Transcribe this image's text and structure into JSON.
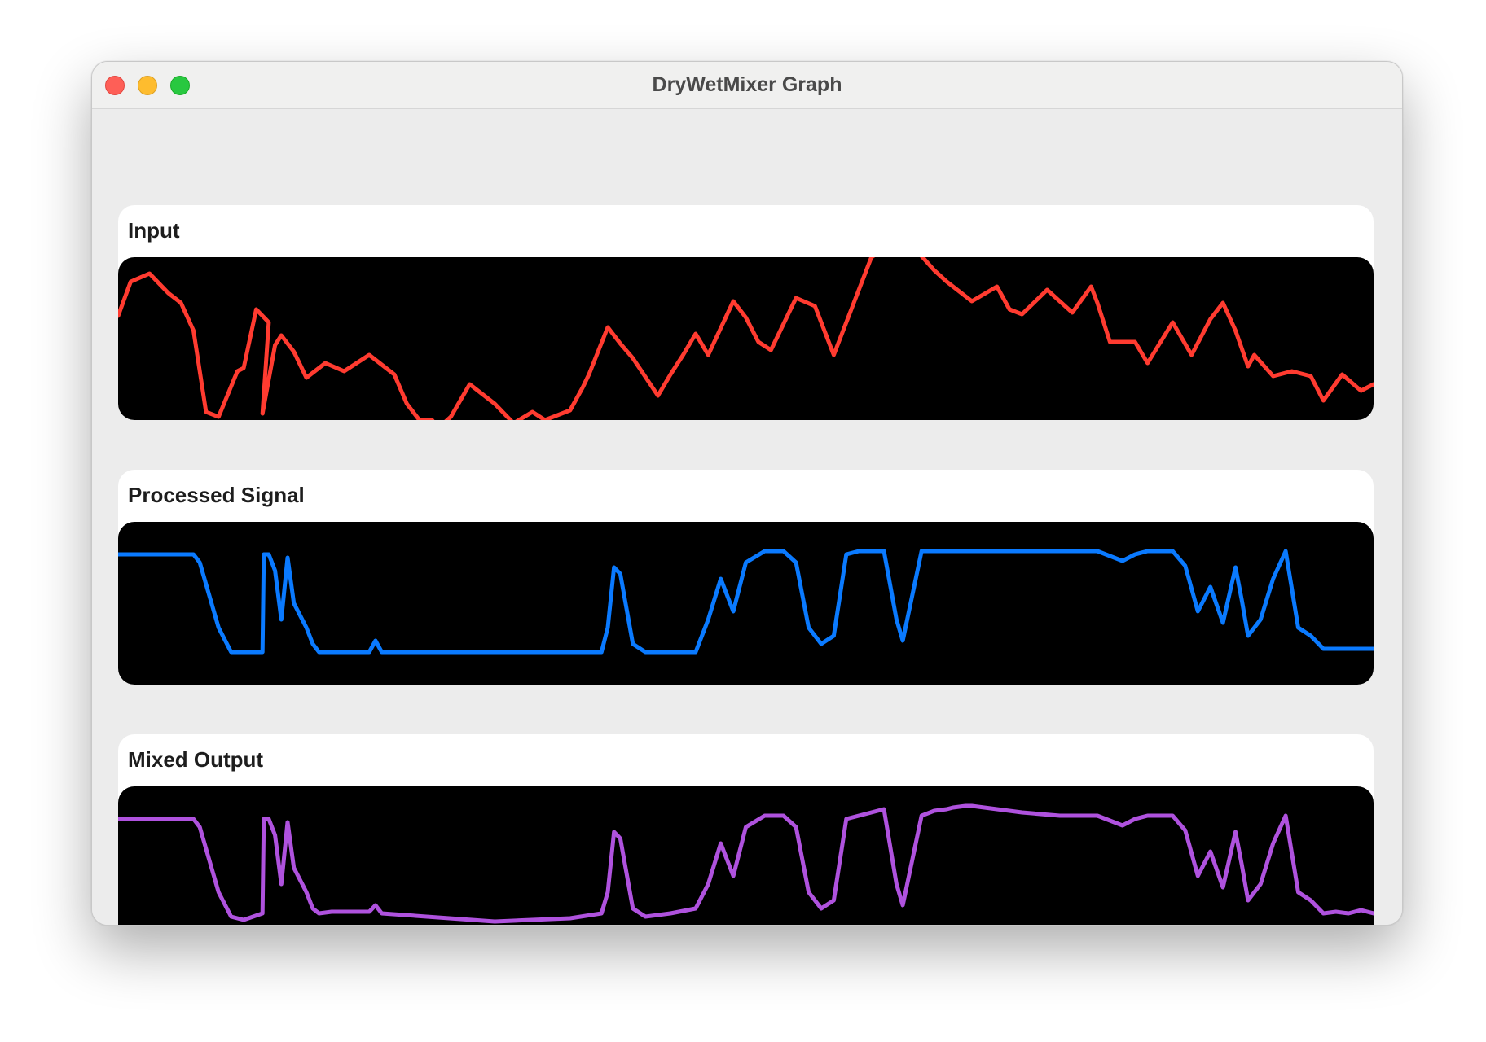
{
  "window": {
    "title": "DryWetMixer Graph",
    "controls": [
      "close",
      "minimize",
      "zoom"
    ]
  },
  "panels": [
    {
      "label": "Input",
      "color": "#ff3b30"
    },
    {
      "label": "Processed Signal",
      "color": "#0a7aff"
    },
    {
      "label": "Mixed Output",
      "color": "#af52de"
    }
  ],
  "chart_data": [
    {
      "type": "line",
      "title": "Input",
      "color": "#ff3b30",
      "xlim": [
        0,
        1
      ],
      "ylim": [
        0,
        1
      ],
      "x": [
        0,
        0.01,
        0.025,
        0.04,
        0.05,
        0.06,
        0.07,
        0.08,
        0.095,
        0.1,
        0.11,
        0.12,
        0.115,
        0.125,
        0.13,
        0.14,
        0.15,
        0.165,
        0.18,
        0.2,
        0.22,
        0.23,
        0.24,
        0.25,
        0.255,
        0.265,
        0.28,
        0.3,
        0.315,
        0.33,
        0.34,
        0.36,
        0.37,
        0.375,
        0.39,
        0.4,
        0.41,
        0.43,
        0.44,
        0.45,
        0.46,
        0.47,
        0.49,
        0.5,
        0.51,
        0.52,
        0.54,
        0.555,
        0.57,
        0.585,
        0.6,
        0.62,
        0.635,
        0.65,
        0.66,
        0.68,
        0.7,
        0.71,
        0.72,
        0.74,
        0.76,
        0.775,
        0.78,
        0.79,
        0.81,
        0.82,
        0.84,
        0.855,
        0.87,
        0.88,
        0.89,
        0.9,
        0.905,
        0.92,
        0.935,
        0.95,
        0.96,
        0.975,
        0.99,
        1
      ],
      "y": [
        0.64,
        0.85,
        0.9,
        0.78,
        0.72,
        0.55,
        0.05,
        0.02,
        0.3,
        0.32,
        0.68,
        0.6,
        0.04,
        0.46,
        0.52,
        0.42,
        0.26,
        0.35,
        0.3,
        0.4,
        0.28,
        0.1,
        0.0,
        0.0,
        -0.05,
        0.02,
        0.22,
        0.1,
        -0.02,
        0.05,
        0.0,
        0.06,
        0.2,
        0.28,
        0.57,
        0.47,
        0.38,
        0.15,
        0.28,
        0.4,
        0.53,
        0.4,
        0.73,
        0.63,
        0.48,
        0.43,
        0.75,
        0.7,
        0.4,
        0.7,
        1.0,
        1.1,
        1.05,
        0.92,
        0.85,
        0.73,
        0.82,
        0.68,
        0.65,
        0.8,
        0.66,
        0.82,
        0.72,
        0.48,
        0.48,
        0.35,
        0.6,
        0.4,
        0.62,
        0.72,
        0.55,
        0.33,
        0.4,
        0.27,
        0.3,
        0.27,
        0.12,
        0.28,
        0.18,
        0.22
      ]
    },
    {
      "type": "line",
      "title": "Processed Signal",
      "color": "#0a7aff",
      "xlim": [
        0,
        1
      ],
      "ylim": [
        0,
        1
      ],
      "x": [
        0,
        0.06,
        0.065,
        0.08,
        0.09,
        0.1,
        0.115,
        0.116,
        0.12,
        0.125,
        0.13,
        0.135,
        0.14,
        0.15,
        0.155,
        0.16,
        0.17,
        0.2,
        0.205,
        0.21,
        0.3,
        0.36,
        0.385,
        0.39,
        0.395,
        0.4,
        0.41,
        0.42,
        0.44,
        0.46,
        0.47,
        0.48,
        0.49,
        0.5,
        0.515,
        0.53,
        0.54,
        0.55,
        0.56,
        0.57,
        0.575,
        0.58,
        0.59,
        0.6,
        0.61,
        0.62,
        0.625,
        0.64,
        0.65,
        0.66,
        0.665,
        0.675,
        0.68,
        0.69,
        0.72,
        0.75,
        0.78,
        0.8,
        0.81,
        0.82,
        0.84,
        0.85,
        0.86,
        0.87,
        0.88,
        0.89,
        0.895,
        0.9,
        0.91,
        0.92,
        0.93,
        0.94,
        0.95,
        0.96,
        0.97,
        0.98,
        0.99,
        1
      ],
      "y": [
        0.8,
        0.8,
        0.75,
        0.35,
        0.2,
        0.2,
        0.2,
        0.8,
        0.8,
        0.7,
        0.4,
        0.78,
        0.5,
        0.35,
        0.25,
        0.2,
        0.2,
        0.2,
        0.27,
        0.2,
        0.2,
        0.2,
        0.2,
        0.35,
        0.72,
        0.68,
        0.25,
        0.2,
        0.2,
        0.2,
        0.4,
        0.65,
        0.45,
        0.75,
        0.82,
        0.82,
        0.75,
        0.35,
        0.25,
        0.3,
        0.55,
        0.8,
        0.82,
        0.82,
        0.82,
        0.4,
        0.27,
        0.82,
        0.82,
        0.82,
        0.82,
        0.82,
        0.82,
        0.82,
        0.82,
        0.82,
        0.82,
        0.76,
        0.8,
        0.82,
        0.82,
        0.73,
        0.45,
        0.6,
        0.38,
        0.72,
        0.52,
        0.3,
        0.4,
        0.65,
        0.82,
        0.35,
        0.3,
        0.22,
        0.22,
        0.22,
        0.22,
        0.22
      ]
    },
    {
      "type": "line",
      "title": "Mixed Output",
      "color": "#af52de",
      "xlim": [
        0,
        1
      ],
      "ylim": [
        0,
        1
      ],
      "x": [
        0,
        0.06,
        0.065,
        0.08,
        0.09,
        0.1,
        0.115,
        0.116,
        0.12,
        0.125,
        0.13,
        0.135,
        0.14,
        0.15,
        0.155,
        0.16,
        0.17,
        0.2,
        0.205,
        0.21,
        0.3,
        0.36,
        0.385,
        0.39,
        0.395,
        0.4,
        0.41,
        0.42,
        0.44,
        0.46,
        0.47,
        0.48,
        0.49,
        0.5,
        0.515,
        0.53,
        0.54,
        0.55,
        0.56,
        0.57,
        0.575,
        0.58,
        0.59,
        0.6,
        0.61,
        0.62,
        0.625,
        0.64,
        0.65,
        0.66,
        0.665,
        0.675,
        0.68,
        0.69,
        0.72,
        0.75,
        0.78,
        0.8,
        0.81,
        0.82,
        0.84,
        0.85,
        0.86,
        0.87,
        0.88,
        0.89,
        0.895,
        0.9,
        0.91,
        0.92,
        0.93,
        0.94,
        0.95,
        0.96,
        0.97,
        0.98,
        0.99,
        1
      ],
      "y": [
        0.8,
        0.8,
        0.75,
        0.35,
        0.2,
        0.18,
        0.22,
        0.8,
        0.8,
        0.7,
        0.4,
        0.78,
        0.5,
        0.35,
        0.25,
        0.22,
        0.23,
        0.23,
        0.27,
        0.22,
        0.17,
        0.19,
        0.22,
        0.35,
        0.72,
        0.68,
        0.25,
        0.2,
        0.22,
        0.25,
        0.4,
        0.65,
        0.45,
        0.75,
        0.82,
        0.82,
        0.75,
        0.35,
        0.25,
        0.3,
        0.55,
        0.8,
        0.82,
        0.84,
        0.86,
        0.4,
        0.27,
        0.82,
        0.85,
        0.86,
        0.87,
        0.88,
        0.88,
        0.87,
        0.84,
        0.82,
        0.82,
        0.76,
        0.8,
        0.82,
        0.82,
        0.73,
        0.45,
        0.6,
        0.38,
        0.72,
        0.52,
        0.3,
        0.4,
        0.65,
        0.82,
        0.35,
        0.3,
        0.22,
        0.23,
        0.22,
        0.24,
        0.22
      ]
    }
  ]
}
